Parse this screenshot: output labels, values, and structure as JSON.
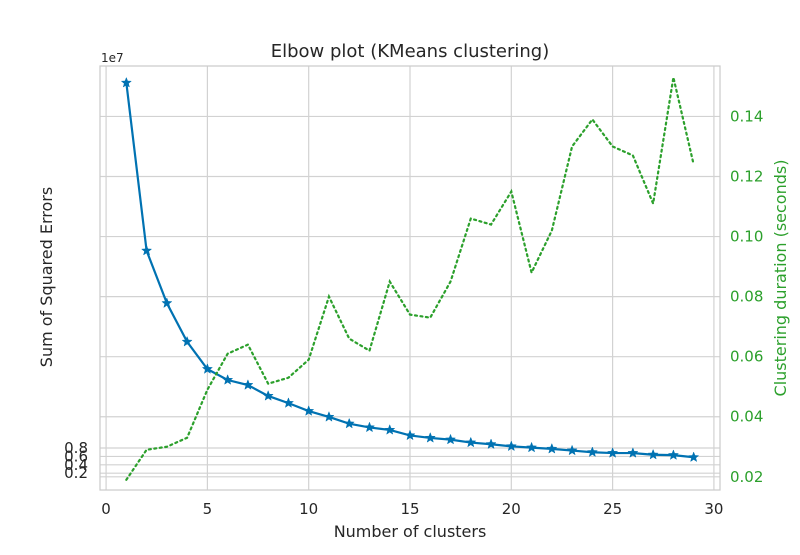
{
  "chart_data": {
    "type": "line",
    "title": "Elbow plot (KMeans clustering)",
    "xlabel": "Number of clusters",
    "ylabel": "Sum of Squared Errors",
    "y2label": "Clustering duration (seconds)",
    "y_offset_label": "1e7",
    "xlim": [
      -0.3,
      30.3
    ],
    "ylim": [
      -0.2,
      9.9
    ],
    "y2lim": [
      0.0156,
      0.1568
    ],
    "x_ticks": [
      0,
      5,
      10,
      15,
      20,
      25,
      30
    ],
    "y_ticks": [
      0.2,
      0.4,
      0.6,
      0.8
    ],
    "y2_ticks": [
      0.02,
      0.04,
      0.06,
      0.08,
      0.1,
      0.12,
      0.14
    ],
    "y_tick_labels": [
      "0.2",
      "0.4",
      "0.6",
      "0.8"
    ],
    "y2_tick_labels": [
      "0.02",
      "0.04",
      "0.06",
      "0.08",
      "0.10",
      "0.12",
      "0.14"
    ],
    "grid": true,
    "x": [
      1,
      2,
      3,
      4,
      5,
      6,
      7,
      8,
      9,
      10,
      11,
      12,
      13,
      14,
      15,
      16,
      17,
      18,
      19,
      20,
      21,
      22,
      23,
      24,
      25,
      26,
      27,
      28,
      29
    ],
    "series": [
      {
        "axis": "left",
        "style": "solid-star",
        "color": "#0072b2",
        "values": [
          9.5,
          5.5,
          4.25,
          3.33,
          2.68,
          2.42,
          2.3,
          2.04,
          1.87,
          1.68,
          1.54,
          1.38,
          1.29,
          1.23,
          1.1,
          1.04,
          1.0,
          0.93,
          0.89,
          0.84,
          0.81,
          0.78,
          0.74,
          0.7,
          0.68,
          0.68,
          0.64,
          0.63,
          0.58
        ]
      },
      {
        "axis": "right",
        "style": "dotted",
        "color": "#2ca02c",
        "values": [
          0.019,
          0.029,
          0.03,
          0.033,
          0.049,
          0.061,
          0.064,
          0.051,
          0.053,
          0.059,
          0.08,
          0.066,
          0.062,
          0.085,
          0.074,
          0.073,
          0.085,
          0.106,
          0.104,
          0.115,
          0.088,
          0.102,
          0.13,
          0.139,
          0.13,
          0.127,
          0.111,
          0.153,
          0.124
        ]
      }
    ]
  }
}
